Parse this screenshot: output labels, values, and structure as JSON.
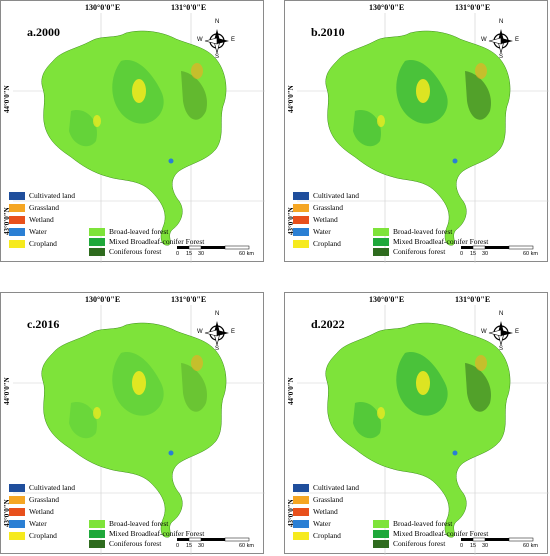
{
  "coords": {
    "lon1": "130°0'0\"E",
    "lon2": "131°0'0\"E",
    "lat1": "44°0'0\"N",
    "lat2": "43°0'0\"N"
  },
  "panels": [
    {
      "title": "a.2000"
    },
    {
      "title": "b.2010"
    },
    {
      "title": "c.2016"
    },
    {
      "title": "d.2022"
    }
  ],
  "legend": [
    {
      "label": "Cultivated land",
      "color": "#1f4e9c"
    },
    {
      "label": "Grassland",
      "color": "#f5a623"
    },
    {
      "label": "Wetland",
      "color": "#e8501c"
    },
    {
      "label": "Water",
      "color": "#2a7fd4"
    },
    {
      "label": "Cropland",
      "color": "#f6ea1e"
    },
    {
      "label": "Broad-leaved forest",
      "color": "#7ee33a"
    },
    {
      "label": "Mixed Broadleaf-conifer Forest",
      "color": "#1fa83a"
    },
    {
      "label": "Coniferous forest",
      "color": "#2e6b1e"
    }
  ],
  "north": {
    "n": "N",
    "s": "S",
    "e": "E",
    "w": "W"
  },
  "scale": {
    "ticks": [
      "0",
      "15",
      "30",
      "60 km"
    ]
  }
}
